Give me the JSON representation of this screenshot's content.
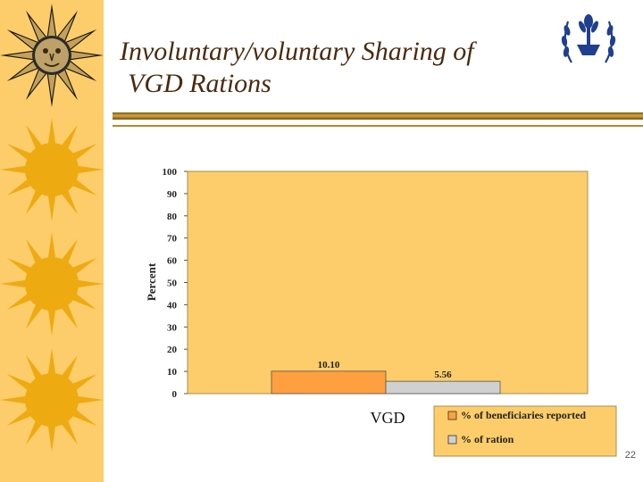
{
  "slide": {
    "title_line1": "Involuntary/voluntary Sharing of",
    "title_line2": "VGD Rations",
    "page_number": "22"
  },
  "colors": {
    "sidebar": "#fccd6a",
    "plot_area": "#fccd6a",
    "series_1": "#ffa040",
    "series_2": "#d0d0d0",
    "title": "#4a2a0e"
  },
  "icons": {
    "sidebar": "sun-motif-icon",
    "logo": "wfp-emblem-icon"
  },
  "chart_data": {
    "type": "bar",
    "categories": [
      "VGD"
    ],
    "series": [
      {
        "name": "% of beneficiaries reported",
        "values": [
          10.1
        ],
        "label": "10.10",
        "color": "#ffa040"
      },
      {
        "name": "% of ration",
        "values": [
          5.56
        ],
        "label": "5.56",
        "color": "#d0d0d0"
      }
    ],
    "title": "",
    "xlabel": "",
    "ylabel": "Percent",
    "ylim": [
      0,
      100
    ],
    "yticks": [
      "0",
      "10",
      "20",
      "30",
      "40",
      "50",
      "60",
      "70",
      "80",
      "90",
      "100"
    ],
    "grid": false,
    "legend_position": "bottom-right"
  }
}
